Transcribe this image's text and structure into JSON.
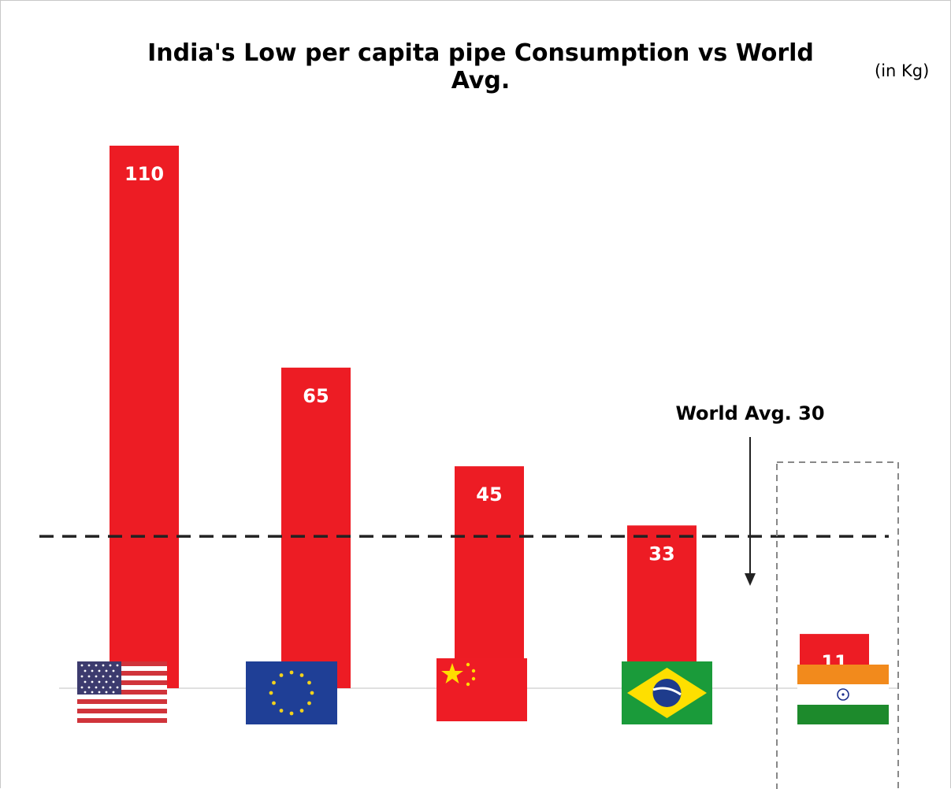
{
  "chart_data": {
    "type": "bar",
    "title": "India's Low per capita pipe Consumption vs World Avg.",
    "unit_label": "(in Kg)",
    "categories": [
      "US",
      "Europe",
      "China",
      "Brazil",
      "India"
    ],
    "values": [
      110,
      65,
      45,
      33,
      11
    ],
    "value_labels": [
      "110",
      "65",
      "45",
      "33",
      "11"
    ],
    "ylim": [
      0,
      110
    ],
    "bar_color": "#ed1c24",
    "reference_line": {
      "value": 30,
      "label": "World Avg. 30",
      "style": "dashed",
      "color": "#222222"
    },
    "highlight": {
      "category": "India",
      "style": "dashed-box"
    },
    "grid": false,
    "legend": "none"
  },
  "flags": [
    {
      "category": "US",
      "icon": "us-flag-icon"
    },
    {
      "category": "Europe",
      "icon": "eu-flag-icon"
    },
    {
      "category": "China",
      "icon": "china-flag-icon"
    },
    {
      "category": "Brazil",
      "icon": "brazil-flag-icon"
    },
    {
      "category": "India",
      "icon": "india-flag-icon"
    }
  ]
}
